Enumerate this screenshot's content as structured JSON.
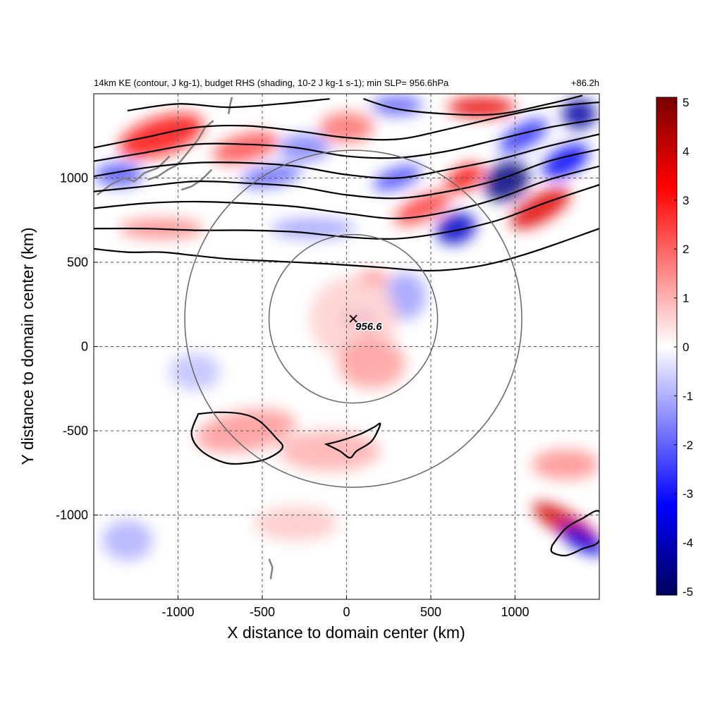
{
  "chart_data": {
    "type": "heatmap",
    "title_left": "14km KE (contour, J kg-1), budget RHS (shading, 10-2 J kg-1 s-1); min SLP= 956.6hPa",
    "title_right": "+86.2h",
    "xlabel": "X distance to domain center (km)",
    "ylabel": "Y distance to domain center (km)",
    "xlim": [
      -1500,
      1500
    ],
    "ylim": [
      -1500,
      1500
    ],
    "x_ticks": [
      -1000,
      -500,
      0,
      500,
      1000
    ],
    "y_ticks": [
      -1000,
      -500,
      0,
      500,
      1000
    ],
    "x_tick_labels": [
      "-1000",
      "-500",
      "0",
      "500",
      "1000"
    ],
    "y_tick_labels": [
      "-1000",
      "-500",
      "0",
      "500",
      "1000"
    ],
    "grid": true,
    "colorbar": {
      "min": -5,
      "max": 5,
      "ticks": [
        "5",
        "4",
        "3",
        "2",
        "1",
        "0",
        "-1",
        "-2",
        "-3",
        "-4",
        "-5"
      ],
      "colormap": [
        "#00005a",
        "#0000ff",
        "#ffffff",
        "#ff0000",
        "#7a0000"
      ]
    },
    "storm_center": {
      "x": 40,
      "y": 165,
      "label": "956.6"
    },
    "range_rings": [
      {
        "center": [
          40,
          165
        ],
        "radius": 500
      },
      {
        "center": [
          40,
          165
        ],
        "radius": 1000
      }
    ],
    "contours": [
      {
        "x": [
          -1500,
          -1300,
          -1100,
          -900,
          -700,
          -400,
          -100,
          200,
          500,
          800,
          1100,
          1500
        ],
        "y": [
          580,
          560,
          560,
          540,
          520,
          505,
          490,
          470,
          450,
          480,
          560,
          700
        ]
      },
      {
        "x": [
          -1500,
          -1200,
          -900,
          -600,
          -300,
          0,
          300,
          600,
          900,
          1200,
          1500
        ],
        "y": [
          700,
          700,
          690,
          690,
          680,
          650,
          640,
          680,
          750,
          860,
          960
        ]
      },
      {
        "x": [
          -1500,
          -1200,
          -900,
          -600,
          -300,
          0,
          300,
          600,
          900,
          1200,
          1500
        ],
        "y": [
          820,
          850,
          860,
          850,
          830,
          790,
          760,
          800,
          880,
          990,
          1070
        ]
      },
      {
        "x": [
          -1500,
          -1200,
          -900,
          -600,
          -300,
          0,
          300,
          600,
          900,
          1200,
          1500
        ],
        "y": [
          920,
          950,
          980,
          970,
          950,
          900,
          880,
          920,
          990,
          1100,
          1170
        ]
      },
      {
        "x": [
          -1500,
          -1200,
          -900,
          -600,
          -300,
          0,
          300,
          600,
          900,
          1200,
          1500
        ],
        "y": [
          1010,
          1060,
          1090,
          1090,
          1070,
          1020,
          1000,
          1050,
          1110,
          1190,
          1260
        ]
      },
      {
        "x": [
          -1500,
          -1200,
          -900,
          -600,
          -300,
          0,
          300,
          600,
          900,
          1200,
          1500
        ],
        "y": [
          1100,
          1150,
          1200,
          1200,
          1180,
          1130,
          1120,
          1160,
          1230,
          1300,
          1350
        ]
      },
      {
        "x": [
          -1500,
          -1200,
          -900,
          -600,
          -300,
          0,
          300,
          600,
          900,
          1200,
          1500
        ],
        "y": [
          1180,
          1240,
          1300,
          1310,
          1280,
          1240,
          1230,
          1290,
          1360,
          1420,
          1450
        ]
      },
      {
        "x": [
          -1300,
          -1000,
          -700,
          -400,
          -100
        ],
        "y": [
          1400,
          1440,
          1420,
          1440,
          1470
        ]
      },
      {
        "x": [
          100,
          300,
          600,
          900,
          1200,
          1400
        ],
        "y": [
          1470,
          1410,
          1380,
          1380,
          1440,
          1490
        ]
      }
    ],
    "closed_contours": [
      {
        "x": [
          -880,
          -760,
          -620,
          -520,
          -420,
          -380,
          -460,
          -580,
          -720,
          -860,
          -920,
          -880
        ],
        "y": [
          -400,
          -390,
          -400,
          -440,
          -540,
          -600,
          -660,
          -690,
          -690,
          -620,
          -520,
          -400
        ]
      },
      {
        "x": [
          -120,
          -40,
          80,
          160,
          200,
          150,
          60,
          20,
          -40,
          -120
        ],
        "y": [
          -580,
          -560,
          -520,
          -480,
          -460,
          -560,
          -620,
          -660,
          -620,
          -580
        ]
      },
      {
        "x": [
          1220,
          1300,
          1400,
          1500,
          1500,
          1400,
          1300,
          1220,
          1220
        ],
        "y": [
          -1180,
          -1080,
          -1020,
          -980,
          -1150,
          -1200,
          -1240,
          -1220,
          -1180
        ]
      }
    ],
    "blobs": [
      {
        "x": -1100,
        "y": 1250,
        "rx": 260,
        "ry": 110,
        "value": 3.0,
        "angle": -18
      },
      {
        "x": -600,
        "y": 1180,
        "rx": 200,
        "ry": 80,
        "value": 2.2,
        "angle": -15
      },
      {
        "x": -1350,
        "y": 1020,
        "rx": 140,
        "ry": 70,
        "value": -2.2,
        "angle": 0
      },
      {
        "x": -450,
        "y": 1010,
        "rx": 180,
        "ry": 60,
        "value": -2.0,
        "angle": -10
      },
      {
        "x": -250,
        "y": 1180,
        "rx": 150,
        "ry": 80,
        "value": -1.6,
        "angle": 0
      },
      {
        "x": 0,
        "y": 1300,
        "rx": 160,
        "ry": 90,
        "value": 1.8,
        "angle": 0
      },
      {
        "x": 300,
        "y": 1000,
        "rx": 150,
        "ry": 60,
        "value": -2.3,
        "angle": -20
      },
      {
        "x": 450,
        "y": 820,
        "rx": 180,
        "ry": 70,
        "value": 2.5,
        "angle": -25
      },
      {
        "x": 650,
        "y": 700,
        "rx": 120,
        "ry": 90,
        "value": -3.8,
        "angle": -20
      },
      {
        "x": 950,
        "y": 980,
        "rx": 140,
        "ry": 110,
        "value": -4.6,
        "angle": -30
      },
      {
        "x": 700,
        "y": 1000,
        "rx": 120,
        "ry": 70,
        "value": 3.0,
        "angle": -30
      },
      {
        "x": 1150,
        "y": 820,
        "rx": 200,
        "ry": 80,
        "value": 3.6,
        "angle": -30
      },
      {
        "x": 1300,
        "y": 1100,
        "rx": 150,
        "ry": 80,
        "value": -3.2,
        "angle": -30
      },
      {
        "x": 800,
        "y": 1420,
        "rx": 200,
        "ry": 60,
        "value": 3.5,
        "angle": 0
      },
      {
        "x": 1380,
        "y": 1380,
        "rx": 100,
        "ry": 90,
        "value": -4.2,
        "angle": 0
      },
      {
        "x": 1050,
        "y": 1250,
        "rx": 160,
        "ry": 70,
        "value": -2.6,
        "angle": -30
      },
      {
        "x": 300,
        "y": 1430,
        "rx": 150,
        "ry": 60,
        "value": -2.0,
        "angle": 0
      },
      {
        "x": -1100,
        "y": 700,
        "rx": 250,
        "ry": 60,
        "value": 1.5,
        "angle": 0
      },
      {
        "x": -200,
        "y": 700,
        "rx": 250,
        "ry": 60,
        "value": -1.2,
        "angle": 0
      },
      {
        "x": 150,
        "y": 400,
        "rx": 100,
        "ry": 50,
        "value": 1.6,
        "angle": 0
      },
      {
        "x": 350,
        "y": 300,
        "rx": 120,
        "ry": 140,
        "value": -1.2,
        "angle": 0
      },
      {
        "x": 20,
        "y": 180,
        "rx": 40,
        "ry": 35,
        "value": 4.0,
        "angle": 0
      },
      {
        "x": 20,
        "y": 140,
        "rx": 35,
        "ry": 30,
        "value": -3.8,
        "angle": 0
      },
      {
        "x": 120,
        "y": 110,
        "rx": 50,
        "ry": 40,
        "value": 3.6,
        "angle": 0
      },
      {
        "x": 110,
        "y": 200,
        "rx": 40,
        "ry": 35,
        "value": -2.2,
        "angle": 0
      },
      {
        "x": 40,
        "y": 165,
        "rx": 260,
        "ry": 250,
        "value": 0.6,
        "angle": 0
      },
      {
        "x": 150,
        "y": -100,
        "rx": 200,
        "ry": 150,
        "value": 1.2,
        "angle": 0
      },
      {
        "x": -600,
        "y": -500,
        "rx": 300,
        "ry": 120,
        "value": 1.3,
        "angle": -10
      },
      {
        "x": -100,
        "y": -620,
        "rx": 300,
        "ry": 120,
        "value": 1.0,
        "angle": 0
      },
      {
        "x": -1300,
        "y": -1150,
        "rx": 150,
        "ry": 120,
        "value": -1.0,
        "angle": 0
      },
      {
        "x": 1300,
        "y": -1050,
        "rx": 220,
        "ry": 70,
        "value": 3.8,
        "angle": 30
      },
      {
        "x": 1400,
        "y": -1150,
        "rx": 150,
        "ry": 60,
        "value": -3.5,
        "angle": 30
      },
      {
        "x": 1300,
        "y": -700,
        "rx": 200,
        "ry": 90,
        "value": 1.4,
        "angle": 0
      },
      {
        "x": -900,
        "y": -150,
        "rx": 150,
        "ry": 110,
        "value": -0.8,
        "angle": 0
      },
      {
        "x": -300,
        "y": -1050,
        "rx": 250,
        "ry": 100,
        "value": 0.7,
        "angle": 0
      }
    ],
    "coastline": [
      {
        "x": [
          -1480,
          -1400,
          -1320,
          -1260,
          -1200,
          -1120,
          -1050
        ],
        "y": [
          900,
          960,
          1000,
          980,
          1030,
          1060,
          1130
        ]
      },
      {
        "x": [
          -1180,
          -1120,
          -1060,
          -1000,
          -960,
          -920,
          -880,
          -840,
          -790
        ],
        "y": [
          990,
          1010,
          1050,
          1080,
          1130,
          1180,
          1230,
          1300,
          1340
        ]
      },
      {
        "x": [
          -980,
          -920,
          -860,
          -800
        ],
        "y": [
          930,
          950,
          990,
          1050
        ]
      },
      {
        "x": [
          -700,
          -690,
          -680
        ],
        "y": [
          1380,
          1440,
          1480
        ]
      },
      {
        "x": [
          -460,
          -440,
          -450
        ],
        "y": [
          -1260,
          -1310,
          -1380
        ]
      }
    ]
  }
}
